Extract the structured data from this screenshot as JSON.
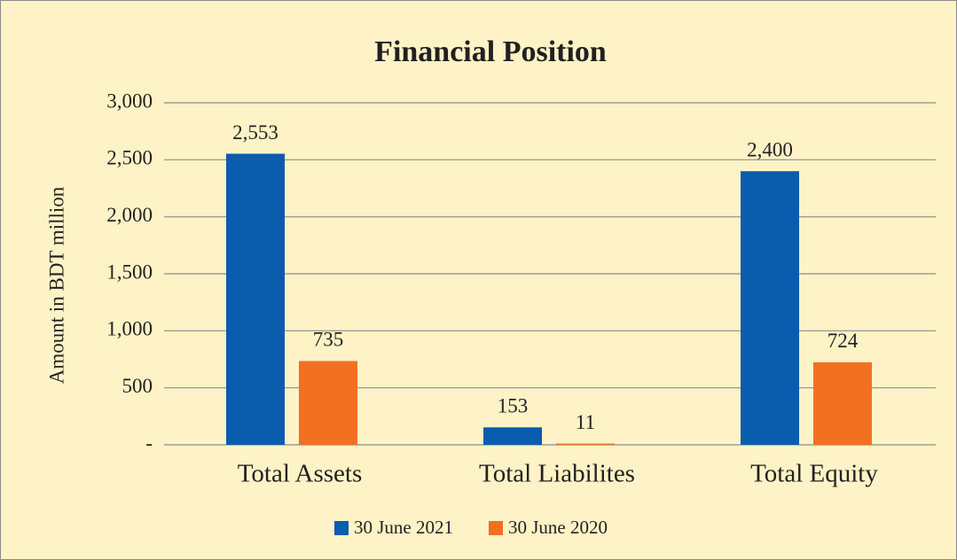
{
  "chart_data": {
    "type": "bar",
    "title": "Financial Position",
    "ylabel": "Amount in BDT million",
    "categories": [
      "Total Assets",
      "Total Liabilites",
      "Total Equity"
    ],
    "series": [
      {
        "name": "30 June 2021",
        "color": "#0a5cad",
        "values": [
          2553,
          153,
          2400
        ],
        "value_labels": [
          "2,553",
          "153",
          "2,400"
        ]
      },
      {
        "name": "30 June 2020",
        "color": "#f37021",
        "values": [
          735,
          11,
          724
        ],
        "value_labels": [
          "735",
          "11",
          "724"
        ]
      }
    ],
    "ylim": [
      0,
      3000
    ],
    "yticks": [
      {
        "value": 0,
        "label": "-"
      },
      500,
      {
        "value": 1000,
        "label": "1,000"
      },
      {
        "value": 1500,
        "label": "1,500"
      },
      {
        "value": 2000,
        "label": "2,000"
      },
      {
        "value": 2500,
        "label": "2,500"
      },
      {
        "value": 3000,
        "label": "3,000"
      }
    ],
    "grid": true,
    "legend": "bottom"
  }
}
